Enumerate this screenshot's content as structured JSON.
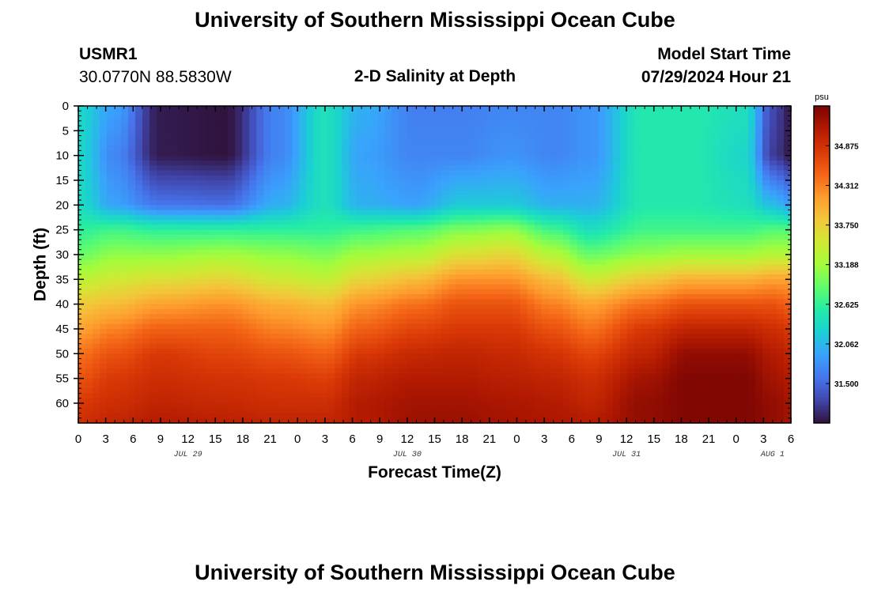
{
  "page": {
    "title_top": "University of Southern Mississippi Ocean Cube",
    "title_bottom": "University of Southern Mississippi Ocean Cube",
    "station_id": "USMR1",
    "station_coords": "30.0770N  88.5830W",
    "plot_title": "2-D Salinity at Depth",
    "model_start_label": "Model Start Time",
    "model_start_value": "07/29/2024 Hour 21"
  },
  "chart_data": {
    "type": "heatmap",
    "title": "2-D Salinity at Depth",
    "xlabel": "Forecast Time(Z)",
    "ylabel": "Depth (ft)",
    "units": "psu",
    "x_hours_range": [
      0,
      78
    ],
    "x_tick_step_hours": 3,
    "x_tick_labels": [
      "0",
      "3",
      "6",
      "9",
      "12",
      "15",
      "18",
      "21",
      "0",
      "3",
      "6",
      "9",
      "12",
      "15",
      "18",
      "21",
      "0",
      "3",
      "6",
      "9",
      "12",
      "15",
      "18",
      "21",
      "0",
      "3",
      "6"
    ],
    "date_labels": [
      {
        "text": "JUL 29",
        "hour": 12
      },
      {
        "text": "JUL 30",
        "hour": 36
      },
      {
        "text": "JUL 31",
        "hour": 60
      },
      {
        "text": "AUG 1",
        "hour": 76
      }
    ],
    "y_range": [
      0,
      64
    ],
    "y_ticks": [
      0,
      5,
      10,
      15,
      20,
      25,
      30,
      35,
      40,
      45,
      50,
      55,
      60
    ],
    "colorbar": {
      "min": 30.94,
      "max": 35.44,
      "labels": [
        "34.875",
        "34.312",
        "33.750",
        "33.188",
        "32.625",
        "32.062",
        "31.500"
      ],
      "colors": [
        "#30123b",
        "#4145ab",
        "#4675ed",
        "#39a2fc",
        "#1bcfd4",
        "#24eca6",
        "#61fc6c",
        "#a4fc3b",
        "#d1e834",
        "#f3c63a",
        "#fe9b2d",
        "#f36315",
        "#d93806",
        "#b11901",
        "#7a0403"
      ]
    },
    "profiles": [
      {
        "hour": 0,
        "depth": [
          0,
          10,
          20,
          25,
          30,
          35,
          40,
          45,
          50,
          55,
          60,
          64
        ],
        "salinity": [
          32.3,
          32.3,
          32.35,
          32.6,
          32.9,
          33.35,
          33.8,
          34.1,
          34.4,
          34.6,
          34.8,
          34.9
        ]
      },
      {
        "hour": 4,
        "depth": [
          0,
          10,
          20,
          25,
          30,
          35,
          40,
          45,
          50,
          55,
          60,
          64
        ],
        "salinity": [
          31.9,
          31.7,
          31.9,
          32.7,
          33.1,
          33.5,
          33.9,
          34.3,
          34.6,
          34.8,
          34.9,
          35.0
        ]
      },
      {
        "hour": 9,
        "depth": [
          0,
          10,
          20,
          25,
          30,
          35,
          40,
          45,
          50,
          55,
          60,
          64
        ],
        "salinity": [
          31.0,
          31.0,
          31.6,
          32.6,
          33.1,
          33.6,
          34.1,
          34.5,
          34.8,
          34.9,
          35.0,
          35.1
        ]
      },
      {
        "hour": 16,
        "depth": [
          0,
          10,
          20,
          25,
          30,
          35,
          40,
          45,
          50,
          55,
          60,
          64
        ],
        "salinity": [
          30.95,
          30.95,
          31.55,
          32.6,
          33.2,
          33.7,
          34.2,
          34.5,
          34.7,
          34.85,
          34.95,
          35.05
        ]
      },
      {
        "hour": 22,
        "depth": [
          0,
          10,
          20,
          25,
          30,
          35,
          40,
          45,
          50,
          55,
          60,
          64
        ],
        "salinity": [
          31.7,
          31.7,
          32.0,
          32.6,
          33.1,
          33.5,
          34.0,
          34.3,
          34.6,
          34.8,
          34.9,
          35.0
        ]
      },
      {
        "hour": 27,
        "depth": [
          0,
          10,
          20,
          25,
          30,
          35,
          40,
          45,
          50,
          55,
          60,
          64
        ],
        "salinity": [
          32.4,
          32.4,
          32.4,
          32.6,
          33.0,
          33.4,
          33.9,
          34.2,
          34.5,
          34.75,
          34.9,
          35.0
        ]
      },
      {
        "hour": 31,
        "depth": [
          0,
          10,
          20,
          25,
          30,
          35,
          40,
          45,
          50,
          55,
          60,
          64
        ],
        "salinity": [
          32.0,
          31.9,
          32.0,
          32.7,
          33.2,
          33.7,
          34.2,
          34.5,
          34.8,
          35.0,
          35.1,
          35.1
        ]
      },
      {
        "hour": 37,
        "depth": [
          0,
          10,
          20,
          25,
          30,
          35,
          40,
          45,
          50,
          55,
          60,
          64
        ],
        "salinity": [
          31.65,
          31.7,
          31.9,
          32.8,
          33.3,
          33.9,
          34.4,
          34.7,
          34.95,
          35.1,
          35.2,
          35.25
        ]
      },
      {
        "hour": 42,
        "depth": [
          0,
          10,
          20,
          25,
          30,
          35,
          40,
          45,
          50,
          55,
          60,
          64
        ],
        "salinity": [
          31.65,
          31.7,
          32.2,
          33.0,
          33.6,
          34.2,
          34.6,
          34.8,
          35.0,
          35.1,
          35.2,
          35.25
        ]
      },
      {
        "hour": 47,
        "depth": [
          0,
          10,
          20,
          25,
          30,
          35,
          40,
          45,
          50,
          55,
          60,
          64
        ],
        "salinity": [
          31.7,
          31.8,
          32.2,
          33.1,
          33.7,
          34.2,
          34.6,
          34.8,
          34.95,
          35.05,
          35.15,
          35.2
        ]
      },
      {
        "hour": 52,
        "depth": [
          0,
          10,
          20,
          25,
          30,
          35,
          40,
          45,
          50,
          55,
          60,
          64
        ],
        "salinity": [
          31.7,
          31.7,
          32.0,
          32.7,
          33.3,
          33.9,
          34.3,
          34.6,
          34.85,
          35.0,
          35.1,
          35.15
        ]
      },
      {
        "hour": 56,
        "depth": [
          0,
          10,
          20,
          25,
          30,
          35,
          40,
          45,
          50,
          55,
          60,
          64
        ],
        "salinity": [
          31.8,
          31.8,
          32.0,
          32.4,
          32.9,
          33.5,
          34.1,
          34.4,
          34.7,
          34.9,
          35.0,
          35.1
        ]
      },
      {
        "hour": 62,
        "depth": [
          0,
          10,
          20,
          25,
          30,
          35,
          40,
          45,
          50,
          55,
          60,
          64
        ],
        "salinity": [
          32.5,
          32.5,
          32.5,
          32.7,
          33.1,
          33.8,
          34.4,
          34.8,
          35.0,
          35.2,
          35.3,
          35.3
        ]
      },
      {
        "hour": 67,
        "depth": [
          0,
          10,
          20,
          25,
          30,
          35,
          40,
          45,
          50,
          55,
          60,
          64
        ],
        "salinity": [
          32.5,
          32.5,
          32.5,
          32.7,
          33.2,
          34.0,
          34.6,
          35.0,
          35.3,
          35.4,
          35.4,
          35.4
        ]
      },
      {
        "hour": 73,
        "depth": [
          0,
          10,
          20,
          25,
          30,
          35,
          40,
          45,
          50,
          55,
          60,
          64
        ],
        "salinity": [
          32.4,
          32.3,
          32.4,
          32.7,
          33.2,
          34.0,
          34.6,
          35.0,
          35.3,
          35.4,
          35.4,
          35.4
        ]
      },
      {
        "hour": 76,
        "depth": [
          0,
          10,
          20,
          25,
          30,
          35,
          40,
          45,
          50,
          55,
          60,
          64
        ],
        "salinity": [
          31.3,
          31.2,
          32.1,
          32.8,
          33.3,
          34.1,
          34.6,
          34.9,
          35.1,
          35.2,
          35.3,
          35.3
        ]
      },
      {
        "hour": 78,
        "depth": [
          0,
          10,
          20,
          25,
          30,
          35,
          40,
          45,
          50,
          55,
          60,
          64
        ],
        "salinity": [
          31.0,
          31.0,
          31.9,
          32.8,
          33.3,
          34.1,
          34.5,
          34.8,
          35.0,
          35.1,
          35.2,
          35.2
        ]
      }
    ]
  }
}
